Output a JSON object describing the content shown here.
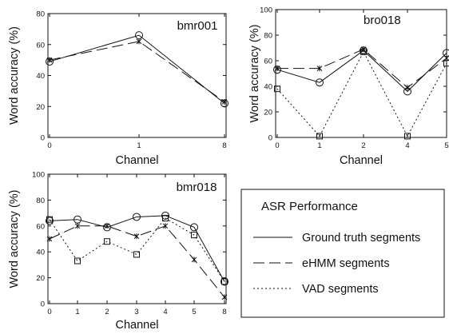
{
  "chart_data": [
    {
      "type": "line",
      "title": "bmr001",
      "xlabel": "Channel",
      "ylabel": "Word accuracy (%)",
      "categories": [
        "0",
        "1",
        "8"
      ],
      "ylim": [
        0,
        80
      ],
      "yticks": [
        "0",
        "20",
        "40",
        "60",
        "80"
      ],
      "series": [
        {
          "name": "Ground truth segments",
          "values": [
            49,
            66,
            22
          ]
        },
        {
          "name": "eHMM segments",
          "values": [
            50,
            62,
            23
          ]
        }
      ]
    },
    {
      "type": "line",
      "title": "bro018",
      "xlabel": "Channel",
      "ylabel": "Word accuracy (%)",
      "categories": [
        "0",
        "1",
        "2",
        "4",
        "5"
      ],
      "ylim": [
        0,
        100
      ],
      "yticks": [
        "0",
        "20",
        "40",
        "60",
        "80",
        "100"
      ],
      "series": [
        {
          "name": "Ground truth segments",
          "values": [
            53,
            43,
            68,
            36,
            66
          ]
        },
        {
          "name": "eHMM segments",
          "values": [
            54,
            54,
            69,
            39,
            62
          ]
        },
        {
          "name": "VAD segments",
          "values": [
            38,
            1,
            67,
            1,
            58
          ]
        }
      ]
    },
    {
      "type": "line",
      "title": "bmr018",
      "xlabel": "Channel",
      "ylabel": "Word accuracy (%)",
      "categories": [
        "0",
        "1",
        "2",
        "3",
        "4",
        "5",
        "8"
      ],
      "ylim": [
        0,
        100
      ],
      "yticks": [
        "0",
        "20",
        "40",
        "60",
        "80",
        "100"
      ],
      "series": [
        {
          "name": "Ground truth segments",
          "values": [
            64,
            65,
            59,
            67,
            68,
            59,
            17
          ]
        },
        {
          "name": "eHMM segments",
          "values": [
            50,
            60,
            60,
            52,
            60,
            34,
            5
          ]
        },
        {
          "name": "VAD segments",
          "values": [
            65,
            33,
            48,
            38,
            66,
            53,
            17
          ]
        }
      ]
    }
  ],
  "legend": {
    "title": "ASR Performance",
    "items": [
      {
        "label": "Ground truth segments",
        "style": "solid"
      },
      {
        "label": "eHMM segments",
        "style": "longdash"
      },
      {
        "label": "VAD segments",
        "style": "dotted"
      }
    ]
  },
  "colors": {
    "ink": "#111111",
    "background": "#ffffff"
  }
}
